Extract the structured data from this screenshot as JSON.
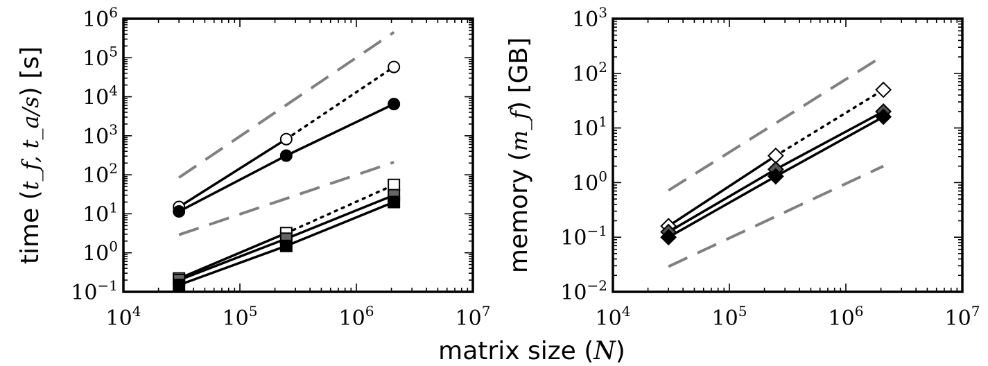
{
  "figure": {
    "shared_xlabel": "matrix size (N)"
  },
  "chart_data": [
    {
      "type": "line",
      "scale": "log-log",
      "xlabel": "matrix size (N)",
      "ylabel": "time (t_f, t_a/s) [s]",
      "ylabel_parts": {
        "prefix": "time (",
        "math": "t_f, t_a/s",
        "suffix": ") [s]"
      },
      "xlim": [
        10000,
        10000000
      ],
      "ylim": [
        0.1,
        1000000
      ],
      "x_ticks": [
        {
          "mantissa": "10",
          "exp": "4"
        },
        {
          "mantissa": "10",
          "exp": "5"
        },
        {
          "mantissa": "10",
          "exp": "6"
        },
        {
          "mantissa": "10",
          "exp": "7"
        }
      ],
      "y_ticks": [
        {
          "mantissa": "10",
          "exp": "−1"
        },
        {
          "mantissa": "10",
          "exp": "0"
        },
        {
          "mantissa": "10",
          "exp": "1"
        },
        {
          "mantissa": "10",
          "exp": "2"
        },
        {
          "mantissa": "10",
          "exp": "3"
        },
        {
          "mantissa": "10",
          "exp": "4"
        },
        {
          "mantissa": "10",
          "exp": "5"
        },
        {
          "mantissa": "10",
          "exp": "6"
        }
      ],
      "series": [
        {
          "name": "circle open",
          "marker": "circle",
          "fill": "#ffffff",
          "style": "mixed",
          "dotted_from": 1,
          "x": [
            30000,
            250000,
            2100000
          ],
          "y": [
            15,
            820,
            58000
          ]
        },
        {
          "name": "circle filled",
          "marker": "circle",
          "fill": "#000000",
          "style": "solid",
          "x": [
            30000,
            250000,
            2100000
          ],
          "y": [
            11.5,
            310,
            6500
          ]
        },
        {
          "name": "square open",
          "marker": "square",
          "fill": "#ffffff",
          "style": "mixed",
          "dotted_from": 1,
          "x": [
            30000,
            250000,
            2100000
          ],
          "y": [
            0.22,
            3.2,
            55
          ]
        },
        {
          "name": "square gray",
          "marker": "square",
          "fill": "#666666",
          "style": "solid",
          "x": [
            30000,
            250000,
            2100000
          ],
          "y": [
            0.2,
            2.3,
            30
          ]
        },
        {
          "name": "square filled",
          "marker": "square",
          "fill": "#000000",
          "style": "solid",
          "x": [
            30000,
            250000,
            2100000
          ],
          "y": [
            0.15,
            1.5,
            20
          ]
        }
      ],
      "reference_lines": [
        {
          "name": "upper dashed",
          "x": [
            30000,
            2100000
          ],
          "y": [
            85,
            450000
          ]
        },
        {
          "name": "lower dashed",
          "x": [
            30000,
            2100000
          ],
          "y": [
            2.9,
            210
          ]
        }
      ]
    },
    {
      "type": "line",
      "scale": "log-log",
      "xlabel": "matrix size (N)",
      "ylabel": "memory (m_f) [GB]",
      "ylabel_parts": {
        "prefix": "memory (",
        "math": "m_f",
        "suffix": ") [GB]"
      },
      "xlim": [
        10000,
        10000000
      ],
      "ylim": [
        0.01,
        1000
      ],
      "x_ticks": [
        {
          "mantissa": "10",
          "exp": "4"
        },
        {
          "mantissa": "10",
          "exp": "5"
        },
        {
          "mantissa": "10",
          "exp": "6"
        },
        {
          "mantissa": "10",
          "exp": "7"
        }
      ],
      "y_ticks": [
        {
          "mantissa": "10",
          "exp": "−2"
        },
        {
          "mantissa": "10",
          "exp": "−1"
        },
        {
          "mantissa": "10",
          "exp": "0"
        },
        {
          "mantissa": "10",
          "exp": "1"
        },
        {
          "mantissa": "10",
          "exp": "2"
        },
        {
          "mantissa": "10",
          "exp": "3"
        }
      ],
      "series": [
        {
          "name": "diamond open",
          "marker": "diamond",
          "fill": "#ffffff",
          "style": "mixed",
          "dotted_from": 1,
          "x": [
            30000,
            250000,
            2100000
          ],
          "y": [
            0.16,
            3.1,
            50
          ]
        },
        {
          "name": "diamond gray",
          "marker": "diamond",
          "fill": "#555555",
          "style": "solid",
          "x": [
            30000,
            250000,
            2100000
          ],
          "y": [
            0.125,
            1.75,
            20
          ]
        },
        {
          "name": "diamond filled",
          "marker": "diamond",
          "fill": "#000000",
          "style": "solid",
          "x": [
            30000,
            250000,
            2100000
          ],
          "y": [
            0.1,
            1.3,
            16
          ]
        }
      ],
      "reference_lines": [
        {
          "name": "upper dashed",
          "x": [
            30000,
            2100000
          ],
          "y": [
            0.72,
            210
          ]
        },
        {
          "name": "lower dashed",
          "x": [
            30000,
            2100000
          ],
          "y": [
            0.029,
            2
          ]
        }
      ]
    }
  ]
}
